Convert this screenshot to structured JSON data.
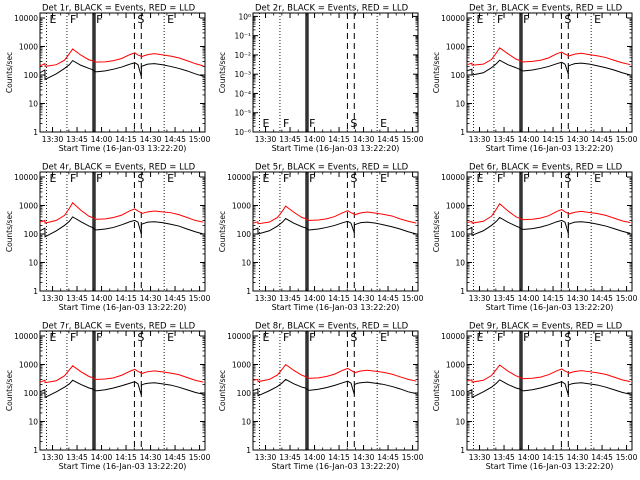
{
  "chart_data": {
    "type": "line",
    "figure_layout": "3x3 grid of panels",
    "shared": {
      "xlabel": "Start Time (16-Jan-03 13:22:20)",
      "ylabel": "Counts/sec",
      "x_tick_labels": [
        "13:30",
        "13:45",
        "14:00",
        "14:15",
        "14:30",
        "14:45",
        "15:00"
      ],
      "x_tick_minutes": [
        7.67,
        22.67,
        37.67,
        52.67,
        67.67,
        82.67,
        97.67
      ],
      "xlim_minutes": [
        0,
        101
      ],
      "log_ylim": [
        1,
        15000
      ],
      "log_y_ticks": [
        1,
        10,
        100,
        1000,
        10000
      ],
      "log_y_tick_labels": [
        "1",
        "10",
        "100",
        "1000",
        "10000"
      ],
      "series_colors": {
        "Events": "#000000",
        "LLD": "#ff0000"
      },
      "series_names": [
        "Events",
        "LLD"
      ],
      "vertical_markers": [
        {
          "minute": 4.0,
          "style": "dotted",
          "label": "E"
        },
        {
          "minute": 16.5,
          "style": "dotted",
          "label": "F"
        },
        {
          "minute": 32.5,
          "style": "solid",
          "label": "F"
        },
        {
          "minute": 33.6,
          "style": "solid",
          "label": ""
        },
        {
          "minute": 57.8,
          "style": "dashed",
          "label": "S"
        },
        {
          "minute": 62.0,
          "style": "dashed",
          "label": ""
        },
        {
          "minute": 76.0,
          "style": "dotted",
          "label": "E"
        }
      ],
      "time_minutes": [
        0,
        3,
        3.1,
        10,
        15,
        18,
        20,
        25,
        30,
        32,
        34,
        35,
        40,
        45,
        50,
        55,
        58,
        60,
        62,
        62.1,
        64,
        66,
        70,
        75,
        80,
        85,
        90,
        95,
        100
      ]
    },
    "panels": [
      {
        "title": "Det 1r, BLACK = Events, RED = LLD",
        "series": [
          {
            "name": "LLD",
            "values": [
              210,
              250,
              200,
              230,
              330,
              560,
              820,
              500,
              340,
              320,
              280,
              285,
              290,
              320,
              380,
              520,
              600,
              500,
              460,
              440,
              480,
              520,
              560,
              510,
              460,
              400,
              320,
              250,
              210
            ]
          },
          {
            "name": "Events",
            "values": [
              120,
              150,
              70,
              110,
              170,
              230,
              320,
              220,
              170,
              155,
              130,
              130,
              140,
              160,
              190,
              240,
              270,
              230,
              90,
              200,
              220,
              240,
              250,
              230,
              200,
              170,
              140,
              110,
              90
            ]
          }
        ]
      },
      {
        "title": "Det 2r, BLACK = Events, RED = LLD",
        "log_ylim": [
          1e-06,
          1.5
        ],
        "log_y_tick_labels": [
          "10⁻⁶",
          "10⁻⁵",
          "10⁻⁴",
          "10⁻³",
          "10⁻²",
          "10⁻¹",
          "10⁰"
        ],
        "series": []
      },
      {
        "title": "Det 3r, BLACK = Events, RED = LLD",
        "series": [
          {
            "name": "LLD",
            "values": [
              230,
              260,
              220,
              240,
              350,
              600,
              900,
              560,
              360,
              330,
              290,
              290,
              300,
              330,
              400,
              560,
              640,
              540,
              480,
              460,
              500,
              540,
              580,
              520,
              470,
              410,
              330,
              270,
              230
            ]
          },
          {
            "name": "Events",
            "values": [
              140,
              160,
              100,
              120,
              180,
              250,
              330,
              230,
              180,
              160,
              140,
              140,
              150,
              170,
              200,
              250,
              280,
              240,
              110,
              210,
              230,
              250,
              260,
              240,
              210,
              180,
              150,
              120,
              100
            ]
          }
        ]
      },
      {
        "title": "Det 4r, BLACK = Events, RED = LLD",
        "series": [
          {
            "name": "LLD",
            "values": [
              260,
              300,
              240,
              300,
              450,
              800,
              1250,
              680,
              420,
              380,
              330,
              330,
              340,
              380,
              460,
              650,
              760,
              640,
              560,
              520,
              560,
              600,
              640,
              600,
              560,
              480,
              380,
              300,
              260
            ]
          },
          {
            "name": "Events",
            "values": [
              130,
              160,
              80,
              130,
              200,
              280,
              400,
              270,
              190,
              170,
              140,
              140,
              150,
              170,
              210,
              270,
              300,
              260,
              100,
              220,
              240,
              260,
              270,
              250,
              220,
              190,
              150,
              120,
              100
            ]
          }
        ]
      },
      {
        "title": "Det 5r, BLACK = Events, RED = LLD",
        "series": [
          {
            "name": "LLD",
            "values": [
              240,
              270,
              230,
              260,
              380,
              640,
              950,
              580,
              380,
              350,
              300,
              300,
              310,
              340,
              410,
              560,
              660,
              560,
              500,
              470,
              510,
              550,
              590,
              540,
              490,
              430,
              340,
              280,
              240
            ]
          },
          {
            "name": "Events",
            "values": [
              140,
              160,
              100,
              130,
              190,
              260,
              350,
              240,
              180,
              165,
              140,
              140,
              150,
              170,
              200,
              250,
              280,
              240,
              110,
              210,
              230,
              250,
              260,
              240,
              210,
              180,
              150,
              120,
              100
            ]
          }
        ]
      },
      {
        "title": "Det 6r, BLACK = Events, RED = LLD",
        "series": [
          {
            "name": "LLD",
            "values": [
              250,
              280,
              240,
              280,
              420,
              750,
              1150,
              650,
              400,
              360,
              320,
              320,
              330,
              360,
              440,
              620,
              720,
              600,
              530,
              500,
              540,
              580,
              620,
              570,
              520,
              450,
              360,
              290,
              250
            ]
          },
          {
            "name": "Events",
            "values": [
              140,
              170,
              90,
              130,
              200,
              280,
              380,
              260,
              190,
              170,
              145,
              145,
              155,
              175,
              210,
              270,
              300,
              260,
              105,
              220,
              240,
              260,
              270,
              250,
              220,
              190,
              155,
              125,
              105
            ]
          }
        ]
      },
      {
        "title": "Det 7r, BLACK = Events, RED = LLD",
        "series": [
          {
            "name": "LLD",
            "values": [
              240,
              280,
              230,
              270,
              400,
              650,
              900,
              560,
              380,
              350,
              300,
              300,
              310,
              340,
              420,
              580,
              680,
              570,
              500,
              480,
              520,
              560,
              600,
              550,
              500,
              440,
              350,
              280,
              240
            ]
          },
          {
            "name": "Events",
            "values": [
              110,
              130,
              70,
              110,
              160,
              210,
              280,
              200,
              150,
              140,
              120,
              120,
              130,
              150,
              180,
              220,
              250,
              210,
              85,
              190,
              210,
              220,
              230,
              210,
              190,
              160,
              130,
              105,
              90
            ]
          }
        ]
      },
      {
        "title": "Det 8r, BLACK = Events, RED = LLD",
        "series": [
          {
            "name": "LLD",
            "values": [
              280,
              300,
              250,
              300,
              430,
              700,
              1000,
              620,
              420,
              380,
              330,
              330,
              340,
              380,
              460,
              630,
              730,
              620,
              540,
              510,
              550,
              590,
              630,
              580,
              530,
              460,
              370,
              300,
              260
            ]
          },
          {
            "name": "Events",
            "values": [
              120,
              140,
              80,
              120,
              170,
              230,
              300,
              210,
              160,
              150,
              125,
              125,
              135,
              155,
              185,
              230,
              260,
              220,
              90,
              200,
              220,
              230,
              240,
              220,
              200,
              170,
              140,
              110,
              95
            ]
          }
        ]
      },
      {
        "title": "Det 9r, BLACK = Events, RED = LLD",
        "series": [
          {
            "name": "LLD",
            "values": [
              260,
              290,
              240,
              280,
              410,
              680,
              960,
              590,
              400,
              360,
              320,
              320,
              330,
              360,
              440,
              600,
              700,
              590,
              520,
              490,
              530,
              570,
              610,
              560,
              510,
              450,
              360,
              290,
              250
            ]
          },
          {
            "name": "Events",
            "values": [
              110,
              130,
              70,
              110,
              160,
              220,
              290,
              200,
              150,
              140,
              120,
              120,
              130,
              150,
              180,
              220,
              250,
              210,
              85,
              190,
              210,
              220,
              230,
              210,
              190,
              160,
              130,
              105,
              90
            ]
          }
        ]
      }
    ]
  }
}
